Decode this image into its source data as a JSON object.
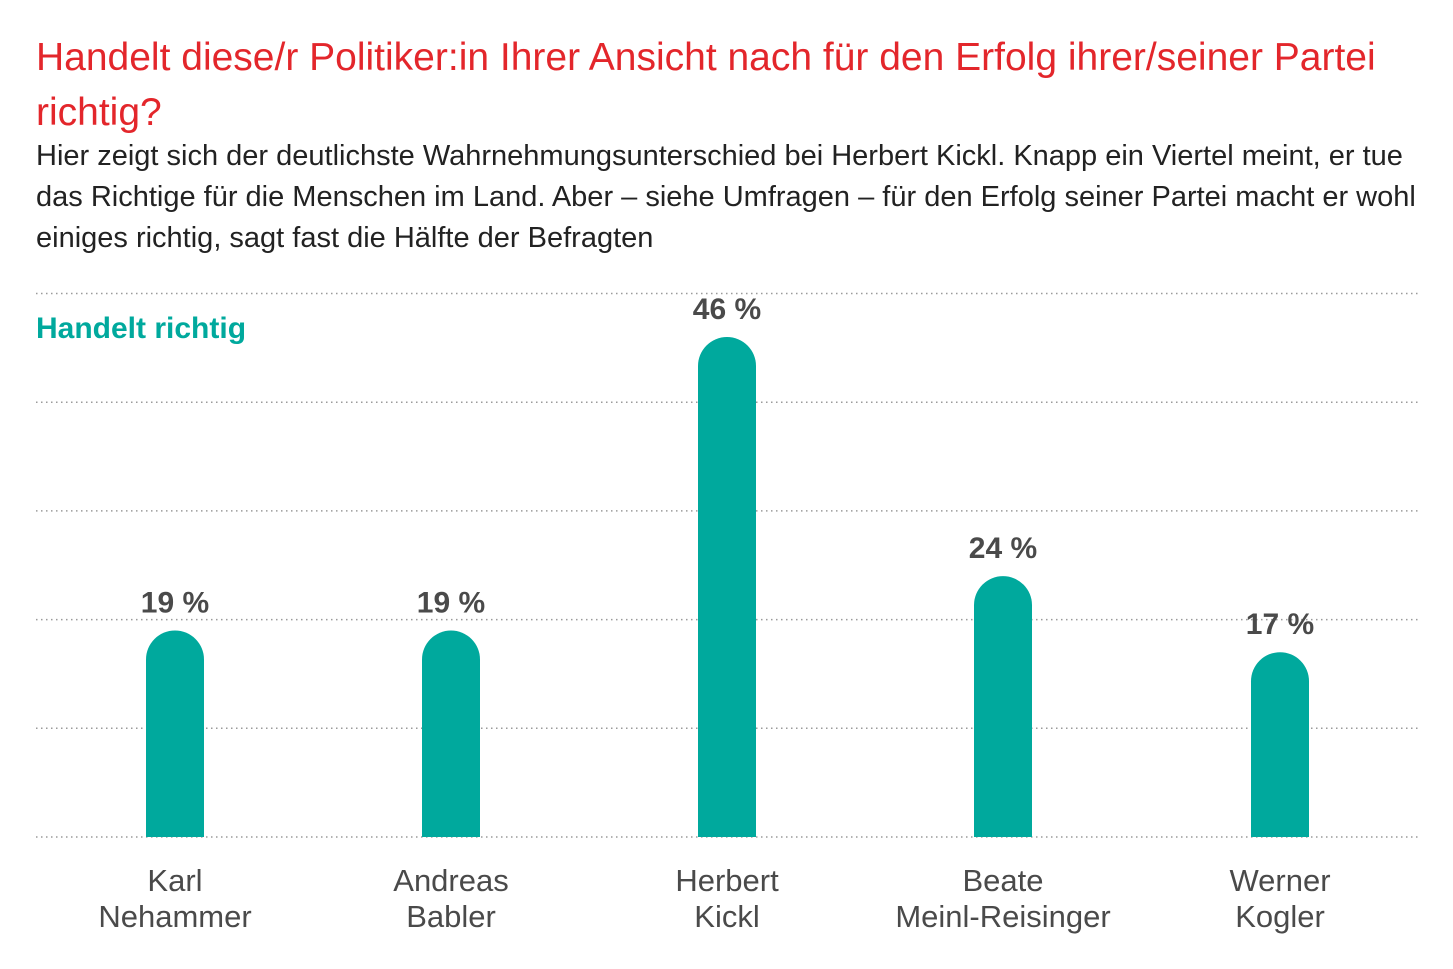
{
  "header": {
    "title": "Handelt diese/r Politiker:in Ihrer Ansicht nach für den Erfolg ihrer/seiner Partei richtig?",
    "subtitle": "Hier zeigt sich der deutlichste Wahrnehmungsunterschied bei Herbert Kickl. Knapp ein Viertel meint, er tue das Richtige für die Menschen im Land. Aber – siehe Umfragen – für den Erfolg seiner Partei macht er wohl einiges richtig, sagt fast die Hälfte der Befragten"
  },
  "colors": {
    "title": "#e3262b",
    "bar": "#00a99d",
    "legend": "#00a99d",
    "text": "#4a4a4a",
    "grid": "#9a9a9a"
  },
  "chart_data": {
    "type": "bar",
    "categories": [
      [
        "Karl",
        "Nehammer"
      ],
      [
        "Andreas",
        "Babler"
      ],
      [
        "Herbert",
        "Kickl"
      ],
      [
        "Beate",
        "Meinl-Reisinger"
      ],
      [
        "Werner",
        "Kogler"
      ]
    ],
    "series": [
      {
        "name": "Handelt richtig",
        "values": [
          19,
          19,
          46,
          24,
          17
        ],
        "labels": [
          "19 %",
          "19 %",
          "46 %",
          "24 %",
          "17 %"
        ]
      }
    ],
    "ylim": [
      0,
      50
    ],
    "grid": true,
    "legend": "top-left",
    "xlabel": "",
    "ylabel": ""
  }
}
